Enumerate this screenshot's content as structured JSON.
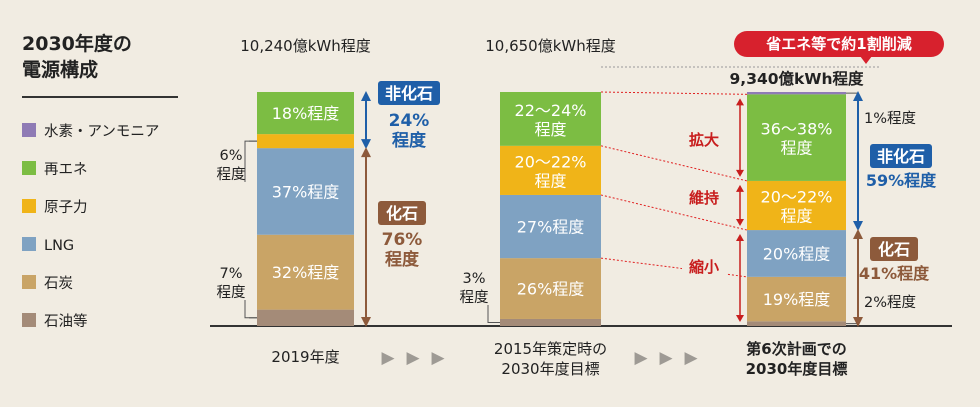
{
  "chart_data": {
    "type": "bar",
    "title": "2030年度の電源構成",
    "legend": [
      {
        "name": "水素・アンモニア",
        "color": "#8f7bb5"
      },
      {
        "name": "再エネ",
        "color": "#7cbd43"
      },
      {
        "name": "原子力",
        "color": "#f0b418"
      },
      {
        "name": "LNG",
        "color": "#7fa2c2"
      },
      {
        "name": "石炭",
        "color": "#c9a466"
      },
      {
        "name": "石油等",
        "color": "#a48b78"
      }
    ],
    "bars": [
      {
        "category": "2019年度",
        "total": "10,240億kWh程度",
        "segments": [
          {
            "source": "石油等",
            "value": 7,
            "label": "7%\n程度",
            "label_side": "left"
          },
          {
            "source": "石炭",
            "value": 32,
            "label": "32%程度"
          },
          {
            "source": "LNG",
            "value": 37,
            "label": "37%程度"
          },
          {
            "source": "原子力",
            "value": 6,
            "label": "6%\n程度",
            "label_side": "left"
          },
          {
            "source": "再エネ",
            "value": 18,
            "label": "18%程度"
          }
        ],
        "groups": [
          {
            "name": "非化石",
            "value": "24%\n程度",
            "color": "#1f5fa8"
          },
          {
            "name": "化石",
            "value": "76%\n程度",
            "color": "#8d5a3b"
          }
        ]
      },
      {
        "category": "2015年策定時の\n2030年度目標",
        "total": "10,650億kWh程度",
        "segments": [
          {
            "source": "石油等",
            "value": 3,
            "label": "3%\n程度",
            "label_side": "left"
          },
          {
            "source": "石炭",
            "value": 26,
            "label": "26%程度"
          },
          {
            "source": "LNG",
            "value": 27,
            "label": "27%程度"
          },
          {
            "source": "原子力",
            "value": 21,
            "label": "20～22%\n程度"
          },
          {
            "source": "再エネ",
            "value": 23,
            "label": "22～24%\n程度"
          }
        ]
      },
      {
        "category": "第6次計画での\n2030年度目標",
        "total": "9,340億kWh程度",
        "callout": "省エネ等で約1割削減",
        "segments": [
          {
            "source": "石油等",
            "value": 2,
            "label": "2%程度",
            "label_side": "right"
          },
          {
            "source": "石炭",
            "value": 19,
            "label": "19%程度"
          },
          {
            "source": "LNG",
            "value": 20,
            "label": "20%程度"
          },
          {
            "source": "原子力",
            "value": 21,
            "label": "20～22%\n程度"
          },
          {
            "source": "再エネ",
            "value": 37,
            "label": "36～38%\n程度"
          },
          {
            "source": "水素・アンモニア",
            "value": 1,
            "label": "1%程度",
            "label_side": "right"
          }
        ],
        "groups": [
          {
            "name": "非化石",
            "value": "59%程度",
            "color": "#1f5fa8"
          },
          {
            "name": "化石",
            "value": "41%程度",
            "color": "#8d5a3b"
          }
        ]
      }
    ],
    "changes": [
      "拡大",
      "維持",
      "縮小"
    ],
    "arrow_glyph": "▶"
  }
}
